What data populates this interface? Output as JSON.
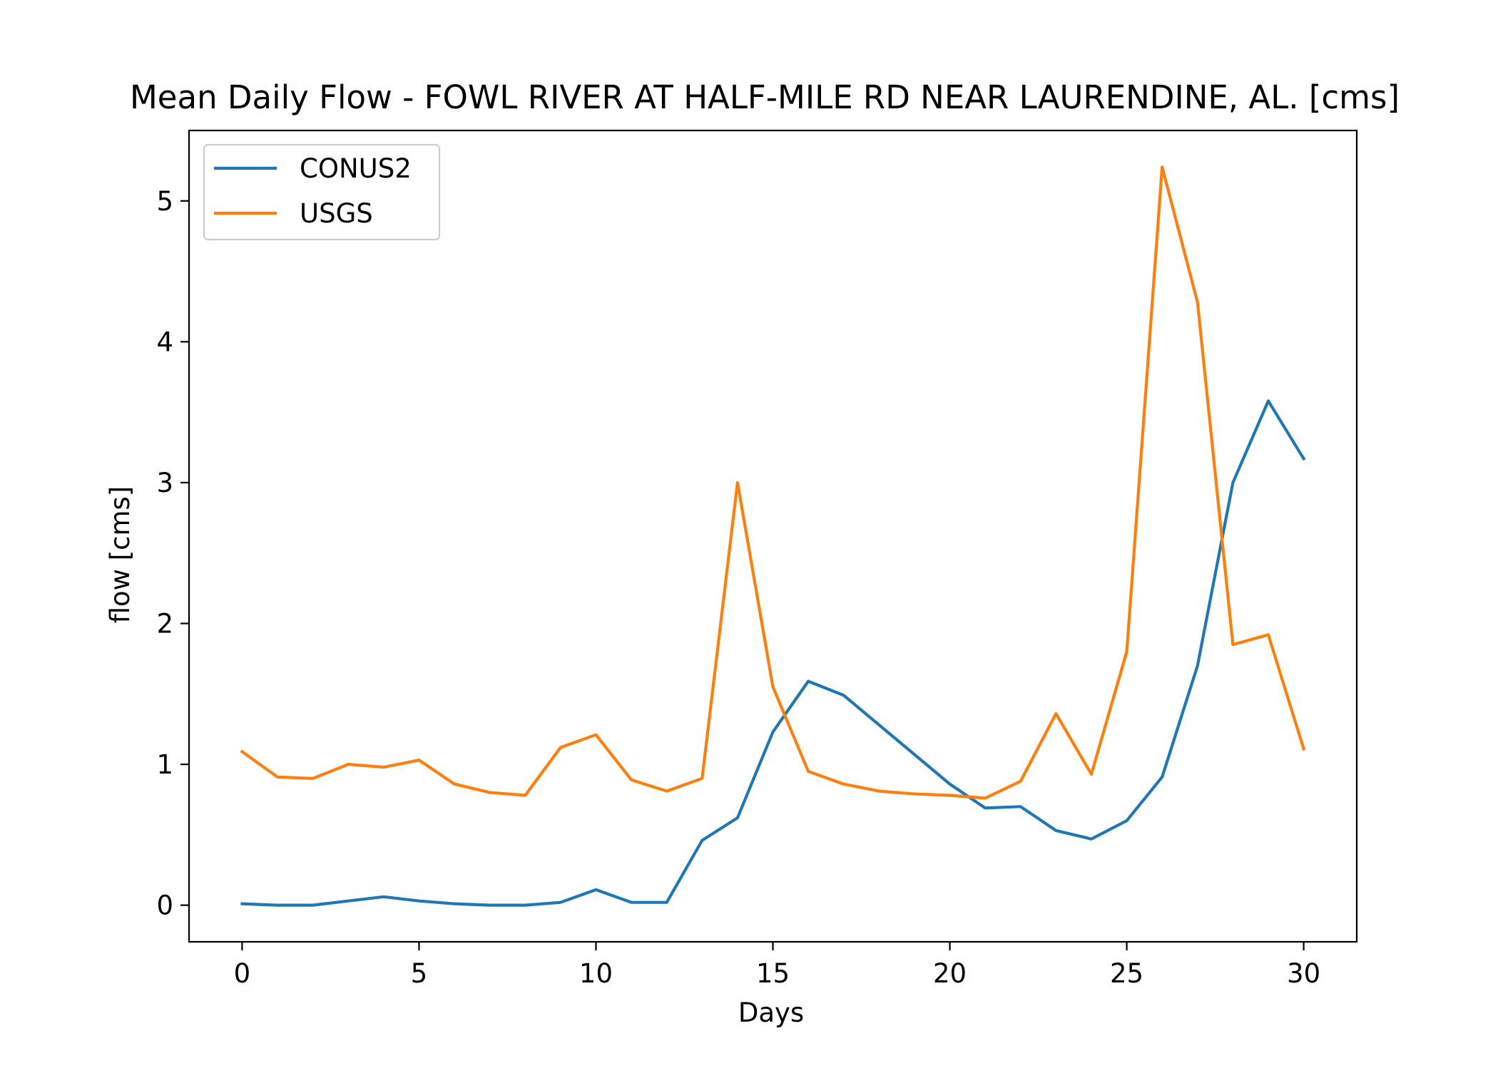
{
  "chart_data": {
    "type": "line",
    "title": "Mean Daily Flow - FOWL RIVER AT HALF-MILE RD NEAR LAURENDINE, AL. [cms]",
    "xlabel": "Days",
    "ylabel": "flow [cms]",
    "xlim": [
      -1.5,
      31.5
    ],
    "ylim": [
      -0.26,
      5.5
    ],
    "xticks": [
      0,
      5,
      10,
      15,
      20,
      25,
      30
    ],
    "yticks": [
      0,
      1,
      2,
      3,
      4,
      5
    ],
    "grid": false,
    "legend_position": "top-left",
    "x": [
      0,
      1,
      2,
      3,
      4,
      5,
      6,
      7,
      8,
      9,
      10,
      11,
      12,
      13,
      14,
      15,
      16,
      17,
      18,
      19,
      20,
      21,
      22,
      23,
      24,
      25,
      26,
      27,
      28,
      29,
      30
    ],
    "series": [
      {
        "name": "CONUS2",
        "color": "#1f77b4",
        "values": [
          0.01,
          0.0,
          0.0,
          0.03,
          0.06,
          0.03,
          0.01,
          0.0,
          0.0,
          0.02,
          0.11,
          0.02,
          0.02,
          0.46,
          0.62,
          1.23,
          1.59,
          1.49,
          1.28,
          1.07,
          0.86,
          0.69,
          0.7,
          0.53,
          0.47,
          0.6,
          0.91,
          1.7,
          3.0,
          3.58,
          3.17
        ]
      },
      {
        "name": "USGS",
        "color": "#ff7f0e",
        "values": [
          1.09,
          0.91,
          0.9,
          1.0,
          0.98,
          1.03,
          0.86,
          0.8,
          0.78,
          1.12,
          1.21,
          0.89,
          0.81,
          0.9,
          3.0,
          1.55,
          0.95,
          0.86,
          0.81,
          0.79,
          0.78,
          0.76,
          0.88,
          1.36,
          0.93,
          1.8,
          5.24,
          4.28,
          1.85,
          1.92,
          1.11
        ]
      }
    ]
  }
}
